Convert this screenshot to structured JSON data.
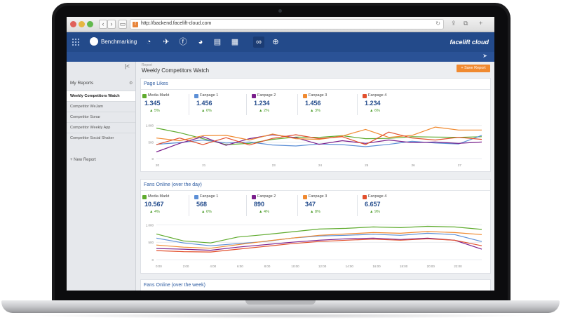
{
  "browser": {
    "url": "http://backend.facelift-cloud.com",
    "back_glyph": "‹",
    "forward_glyph": "›",
    "reload_glyph": "↻",
    "favicon_glyph": "f"
  },
  "app": {
    "section_label": "Benchmarking",
    "brand": "facelift cloud",
    "toolbar_icons": [
      "dashboard-icon",
      "rocket-icon",
      "facebook-icon",
      "pie-chart-icon",
      "store-icon",
      "newspaper-icon",
      "binoculars-icon",
      "search-people-icon"
    ],
    "toolbar_glyphs": [
      "◔",
      "✈",
      "ⓕ",
      "◕",
      "▤",
      "▦",
      "∞",
      "⊕"
    ],
    "active_tool_index": 6
  },
  "sidebar": {
    "heading": "My Reports",
    "reports": [
      "Weekly Competitors Watch",
      "Competitor WeJam",
      "Competitor Sonar",
      "Competitor Weekly App",
      "Competitor Social Shaker"
    ],
    "active_index": 0,
    "new_report": "+ New Report",
    "collapse_glyph": "|<",
    "gear_glyph": "⚙"
  },
  "main": {
    "breadcrumb": "Report",
    "title": "Weekly Competitors Watch",
    "save_button": "+ Save Report"
  },
  "colors": {
    "Media Markt": "#5fab2e",
    "Fanpage 1": "#5c8fd6",
    "Fanpage 2": "#7a1e8c",
    "Fanpage 3": "#f08a30",
    "Fanpage 4": "#e2502d"
  },
  "page_likes": {
    "title": "Page Likes",
    "stats": [
      {
        "name": "Media Markt",
        "value": "1.345",
        "change": "▲ 5%"
      },
      {
        "name": "Fanpage 1",
        "value": "1.456",
        "change": "▲ 6%"
      },
      {
        "name": "Fanpage 2",
        "value": "1.234",
        "change": "▲ 2%"
      },
      {
        "name": "Fanpage 3",
        "value": "1.456",
        "change": "▲ 3%"
      },
      {
        "name": "Fanpage 4",
        "value": "1.234",
        "change": "▲ 6%"
      }
    ]
  },
  "fans_online_day": {
    "title": "Fans Online (over the day)",
    "stats": [
      {
        "name": "Media Markt",
        "value": "10.567",
        "change": "▲ 4%"
      },
      {
        "name": "Fanpage 1",
        "value": "568",
        "change": "▲ 6%"
      },
      {
        "name": "Fanpage 2",
        "value": "890",
        "change": "▲ 4%"
      },
      {
        "name": "Fanpage 3",
        "value": "347",
        "change": "▲ 8%"
      },
      {
        "name": "Fanpage 4",
        "value": "6.657",
        "change": "▲ 9%"
      }
    ]
  },
  "fans_online_week": {
    "title": "Fans Online (over the week)"
  },
  "chart_data": [
    {
      "type": "line",
      "title": "Page Likes",
      "x": [
        "20",
        "",
        "21",
        "",
        "",
        "23",
        "",
        "24",
        "",
        "25",
        "",
        "26",
        "",
        "27",
        ""
      ],
      "y_ticks": [
        "1.000",
        "500",
        "0"
      ],
      "ylim": [
        0,
        1100
      ],
      "grid": true,
      "series": [
        {
          "name": "Media Markt",
          "values": [
            920,
            780,
            600,
            420,
            460,
            580,
            650,
            640,
            690,
            600,
            610,
            660,
            650,
            640,
            660
          ]
        },
        {
          "name": "Fanpage 1",
          "values": [
            430,
            480,
            560,
            470,
            500,
            410,
            380,
            440,
            420,
            360,
            430,
            520,
            470,
            440,
            700
          ]
        },
        {
          "name": "Fanpage 2",
          "values": [
            200,
            460,
            660,
            400,
            600,
            720,
            630,
            430,
            540,
            460,
            560,
            480,
            500,
            460,
            500
          ]
        },
        {
          "name": "Fanpage 3",
          "values": [
            620,
            540,
            690,
            700,
            560,
            740,
            600,
            580,
            680,
            880,
            640,
            700,
            950,
            860,
            860
          ]
        },
        {
          "name": "Fanpage 4",
          "values": [
            420,
            620,
            420,
            630,
            410,
            610,
            720,
            600,
            660,
            420,
            800,
            620,
            560,
            640,
            580
          ]
        }
      ]
    },
    {
      "type": "line",
      "title": "Fans Online (over the day)",
      "x": [
        "0:00",
        "2:00",
        "4:00",
        "6:00",
        "8:00",
        "10:00",
        "12:00",
        "14:00",
        "16:00",
        "18:00",
        "20:00",
        "22:00",
        ""
      ],
      "y_ticks": [
        "1.000",
        "500",
        "0"
      ],
      "ylim": [
        0,
        1050
      ],
      "grid": true,
      "series": [
        {
          "name": "Media Markt",
          "values": [
            740,
            540,
            480,
            650,
            720,
            800,
            880,
            900,
            940,
            920,
            960,
            940,
            870
          ]
        },
        {
          "name": "Fanpage 1",
          "values": [
            620,
            480,
            400,
            460,
            520,
            620,
            680,
            700,
            730,
            700,
            760,
            720,
            520
          ]
        },
        {
          "name": "Fanpage 2",
          "values": [
            320,
            300,
            270,
            360,
            430,
            500,
            560,
            600,
            620,
            580,
            620,
            560,
            300
          ]
        },
        {
          "name": "Fanpage 3",
          "values": [
            420,
            360,
            330,
            430,
            530,
            620,
            700,
            740,
            780,
            760,
            810,
            780,
            720
          ]
        },
        {
          "name": "Fanpage 4",
          "values": [
            260,
            230,
            220,
            300,
            380,
            460,
            520,
            560,
            590,
            560,
            600,
            560,
            400
          ]
        }
      ]
    }
  ]
}
